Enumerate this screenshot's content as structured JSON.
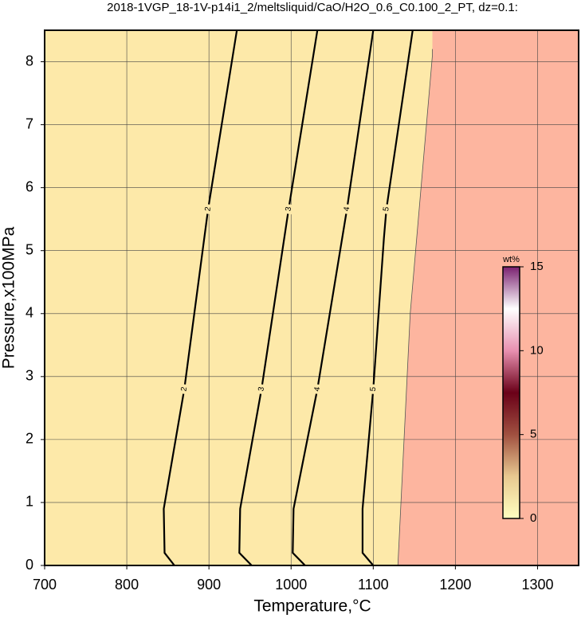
{
  "chart_data": {
    "type": "contour",
    "title": "2018-1VGP_18-1V-p14i1_2/meltsliquid/CaO/H2O_0.6_C0.100_2_PT, dz=0.1:",
    "x_label": "Temperature,°C",
    "y_label": "Pressure,x100MPa",
    "xlim": [
      700,
      1350
    ],
    "ylim": [
      0,
      8.5
    ],
    "xticks": [
      700,
      800,
      900,
      1000,
      1100,
      1200,
      1300
    ],
    "yticks": [
      0,
      1,
      2,
      3,
      4,
      5,
      6,
      7,
      8
    ],
    "grid": true,
    "background_color": "#fde9a9",
    "outside_color": "#fdb59f",
    "outside_boundary": {
      "x": [
        1130,
        1145,
        1172
      ],
      "y": [
        0,
        4,
        8.1
      ]
    },
    "series": [
      {
        "name": "2",
        "color": "#000000",
        "x": [
          858,
          846,
          845,
          870,
          899,
          934
        ],
        "y": [
          0,
          0.2,
          0.9,
          2.8,
          5.66,
          8.5
        ]
      },
      {
        "name": "3",
        "color": "#000000",
        "x": [
          952,
          937,
          938,
          964,
          997,
          1032
        ],
        "y": [
          0,
          0.2,
          0.9,
          2.8,
          5.66,
          8.5
        ]
      },
      {
        "name": "4",
        "color": "#000000",
        "x": [
          1017,
          1002,
          1003,
          1032,
          1068,
          1100
        ],
        "y": [
          0,
          0.2,
          0.9,
          2.8,
          5.66,
          8.5
        ]
      },
      {
        "name": "5",
        "color": "#000000",
        "x": [
          1100,
          1087,
          1087,
          1100,
          1113,
          1116,
          1148
        ],
        "y": [
          0,
          0.2,
          0.9,
          2.8,
          5.2,
          5.66,
          8.5
        ]
      }
    ],
    "colorbar": {
      "label": "wt%",
      "lim": [
        0,
        15
      ],
      "ticks": [
        0,
        5,
        10,
        15
      ],
      "colors": [
        "#ffffc0",
        "#e8c890",
        "#a05040",
        "#6a0018",
        "#e890b0",
        "#ffffff",
        "#7a2070"
      ]
    }
  }
}
